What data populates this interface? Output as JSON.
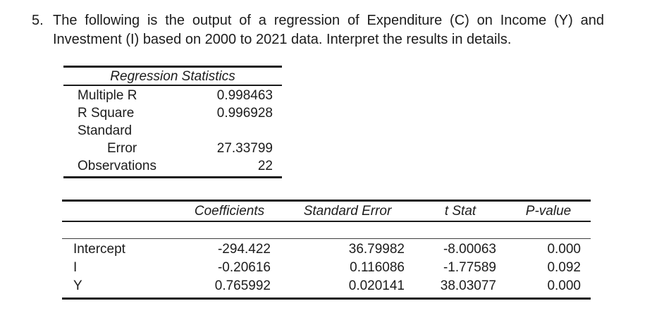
{
  "question": {
    "number": "5.",
    "line1": "The following is the output of a regression of Expenditure (C) on Income (Y) and",
    "line2": "Investment (I) based on 2000 to 2021 data. Interpret the results in details."
  },
  "regression_statistics": {
    "title": "Regression Statistics",
    "rows": [
      {
        "label": "Multiple R",
        "value": "0.998463"
      },
      {
        "label": "R Square",
        "value": "0.996928"
      },
      {
        "label": "Standard",
        "value": ""
      },
      {
        "label": "Error",
        "value": "27.33799"
      },
      {
        "label": "Observations",
        "value": "22"
      }
    ]
  },
  "coefficients_table": {
    "headers": {
      "coefficients": "Coefficients",
      "standard_error": "Standard Error",
      "t_stat": "t Stat",
      "p_value": "P-value"
    },
    "rows": [
      {
        "label": "Intercept",
        "coefficient": "-294.422",
        "standard_error": "36.79982",
        "t_stat": "-8.00063",
        "p_value": "0.000"
      },
      {
        "label": "I",
        "coefficient": "-0.20616",
        "standard_error": "0.116086",
        "t_stat": "-1.77589",
        "p_value": "0.092"
      },
      {
        "label": "Y",
        "coefficient": "0.765992",
        "standard_error": "0.020141",
        "t_stat": "38.03077",
        "p_value": "0.000"
      }
    ]
  },
  "colors": {
    "background": "#ffffff",
    "text": "#1c1c1c",
    "rule": "#1b1b1b"
  }
}
